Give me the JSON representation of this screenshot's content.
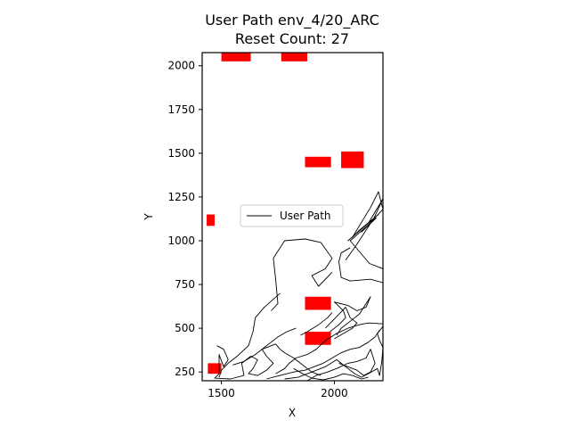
{
  "chart_data": {
    "type": "line",
    "title_line1": "User Path env_4/20_ARC",
    "title_line2": "Reset Count: 27",
    "xlabel": "X",
    "ylabel": "Y",
    "xlim": [
      1415,
      2215
    ],
    "ylim": [
      200,
      2075
    ],
    "xticks": [
      {
        "value": 1500,
        "label": "1500"
      },
      {
        "value": 2000,
        "label": "2000"
      }
    ],
    "yticks": [
      {
        "value": 250,
        "label": "250"
      },
      {
        "value": 500,
        "label": "500"
      },
      {
        "value": 750,
        "label": "750"
      },
      {
        "value": 1000,
        "label": "1000"
      },
      {
        "value": 1250,
        "label": "1250"
      },
      {
        "value": 1500,
        "label": "1500"
      },
      {
        "value": 1750,
        "label": "1750"
      },
      {
        "value": 2000,
        "label": "2000"
      }
    ],
    "legend": {
      "position": "center",
      "label": "User Path"
    },
    "path_color": "#000000",
    "obstacle_color": "#ff0000",
    "obstacles": [
      {
        "x": [
          1500,
          1630
        ],
        "y": [
          2025,
          2075
        ]
      },
      {
        "x": [
          1765,
          1880
        ],
        "y": [
          2025,
          2075
        ]
      },
      {
        "x": [
          1870,
          1985
        ],
        "y": [
          1420,
          1480
        ]
      },
      {
        "x": [
          2030,
          2130
        ],
        "y": [
          1415,
          1510
        ]
      },
      {
        "x": [
          1435,
          1470
        ],
        "y": [
          1085,
          1150
        ]
      },
      {
        "x": [
          1870,
          1985
        ],
        "y": [
          605,
          680
        ]
      },
      {
        "x": [
          1870,
          1985
        ],
        "y": [
          405,
          480
        ]
      },
      {
        "x": [
          1440,
          1500
        ],
        "y": [
          240,
          300
        ]
      }
    ],
    "series": [
      {
        "name": "User Path",
        "segments": [
          [
            [
              2215,
              840
            ],
            [
              2155,
              870
            ],
            [
              2070,
              1000
            ],
            [
              2185,
              1130
            ],
            [
              2120,
              1050
            ],
            [
              2215,
              1180
            ],
            [
              2195,
              1280
            ],
            [
              2160,
              1190
            ],
            [
              2080,
              1020
            ],
            [
              2110,
              1060
            ],
            [
              2195,
              1150
            ],
            [
              2060,
              1000
            ],
            [
              2150,
              1100
            ],
            [
              2215,
              1240
            ],
            [
              2175,
              1130
            ],
            [
              2100,
              980
            ],
            [
              2050,
              890
            ]
          ],
          [
            [
              2215,
              760
            ],
            [
              2160,
              780
            ],
            [
              2070,
              770
            ],
            [
              2030,
              790
            ],
            [
              2020,
              880
            ],
            [
              2030,
              930
            ],
            [
              2070,
              960
            ]
          ],
          [
            [
              1940,
              990
            ],
            [
              1870,
              1010
            ],
            [
              1780,
              1000
            ],
            [
              1730,
              900
            ],
            [
              1740,
              780
            ],
            [
              1750,
              640
            ],
            [
              1720,
              600
            ]
          ],
          [
            [
              1940,
              990
            ],
            [
              1990,
              900
            ],
            [
              1960,
              840
            ],
            [
              1900,
              800
            ],
            [
              1930,
              740
            ],
            [
              1990,
              820
            ]
          ],
          [
            [
              1760,
              700
            ],
            [
              1690,
              620
            ],
            [
              1650,
              560
            ],
            [
              1640,
              480
            ],
            [
              1620,
              400
            ],
            [
              1570,
              340
            ],
            [
              1530,
              300
            ],
            [
              1500,
              260
            ],
            [
              1490,
              220
            ]
          ],
          [
            [
              1480,
              400
            ],
            [
              1510,
              380
            ],
            [
              1530,
              320
            ],
            [
              1510,
              280
            ],
            [
              1490,
              350
            ],
            [
              1490,
              240
            ],
            [
              1470,
              215
            ],
            [
              1540,
              210
            ],
            [
              1600,
              230
            ],
            [
              1590,
              300
            ],
            [
              1630,
              340
            ],
            [
              1660,
              320
            ],
            [
              1640,
              270
            ],
            [
              1620,
              240
            ],
            [
              1660,
              230
            ],
            [
              1700,
              260
            ],
            [
              1730,
              300
            ],
            [
              1700,
              340
            ],
            [
              1680,
              380
            ],
            [
              1740,
              410
            ],
            [
              1760,
              380
            ],
            [
              1780,
              360
            ],
            [
              1820,
              330
            ],
            [
              1850,
              300
            ],
            [
              1880,
              270
            ],
            [
              1900,
              250
            ],
            [
              1940,
              230
            ]
          ],
          [
            [
              1740,
              240
            ],
            [
              1780,
              270
            ],
            [
              1800,
              300
            ],
            [
              1830,
              330
            ],
            [
              1880,
              350
            ],
            [
              1920,
              380
            ],
            [
              1960,
              430
            ],
            [
              2010,
              470
            ],
            [
              2060,
              500
            ],
            [
              2110,
              520
            ],
            [
              2150,
              530
            ],
            [
              2215,
              525
            ]
          ],
          [
            [
              1980,
              480
            ],
            [
              2020,
              520
            ],
            [
              2050,
              560
            ],
            [
              2040,
              600
            ],
            [
              2000,
              650
            ],
            [
              2060,
              630
            ],
            [
              2100,
              600
            ],
            [
              2140,
              620
            ],
            [
              2160,
              680
            ],
            [
              2110,
              580
            ],
            [
              2090,
              560
            ],
            [
              2070,
              540
            ],
            [
              2030,
              500
            ],
            [
              2010,
              460
            ]
          ],
          [
            [
              1780,
              210
            ],
            [
              1840,
              220
            ],
            [
              1900,
              250
            ],
            [
              1960,
              280
            ],
            [
              2010,
              320
            ],
            [
              2050,
              280
            ],
            [
              2090,
              240
            ],
            [
              2120,
              220
            ],
            [
              2150,
              240
            ],
            [
              2190,
              270
            ],
            [
              2200,
              230
            ],
            [
              2210,
              310
            ],
            [
              2215,
              390
            ],
            [
              2200,
              430
            ],
            [
              2190,
              470
            ],
            [
              2215,
              510
            ]
          ],
          [
            [
              1880,
              200
            ],
            [
              1920,
              230
            ],
            [
              1970,
              250
            ],
            [
              2010,
              270
            ],
            [
              2060,
              300
            ],
            [
              2100,
              310
            ],
            [
              2140,
              330
            ],
            [
              2160,
              380
            ],
            [
              2180,
              300
            ],
            [
              2160,
              250
            ],
            [
              2130,
              230
            ],
            [
              2100,
              260
            ],
            [
              2060,
              280
            ],
            [
              2020,
              300
            ]
          ],
          [
            [
              1850,
              460
            ],
            [
              1880,
              480
            ],
            [
              1930,
              520
            ],
            [
              1970,
              560
            ],
            [
              1990,
              590
            ]
          ],
          [
            [
              1960,
              500
            ],
            [
              1990,
              540
            ],
            [
              2050,
              620
            ],
            [
              2070,
              560
            ],
            [
              2100,
              530
            ],
            [
              2080,
              500
            ],
            [
              2040,
              470
            ],
            [
              2000,
              440
            ]
          ],
          [
            [
              1820,
              270
            ],
            [
              1860,
              240
            ],
            [
              1900,
              215
            ],
            [
              1950,
              205
            ],
            [
              2000,
              220
            ],
            [
              2040,
              240
            ],
            [
              2080,
              230
            ],
            [
              2120,
              210
            ],
            [
              2150,
              220
            ]
          ],
          [
            [
              1700,
              210
            ],
            [
              1760,
              230
            ],
            [
              1820,
              250
            ],
            [
              1870,
              260
            ],
            [
              1910,
              280
            ],
            [
              1950,
              300
            ],
            [
              1990,
              330
            ],
            [
              2030,
              360
            ],
            [
              2070,
              380
            ],
            [
              2110,
              390
            ],
            [
              2150,
              420
            ],
            [
              2180,
              450
            ],
            [
              2200,
              490
            ]
          ],
          [
            [
              1550,
              290
            ],
            [
              1600,
              310
            ],
            [
              1650,
              350
            ],
            [
              1700,
              400
            ],
            [
              1750,
              450
            ],
            [
              1790,
              480
            ],
            [
              1830,
              500
            ]
          ]
        ]
      }
    ]
  }
}
